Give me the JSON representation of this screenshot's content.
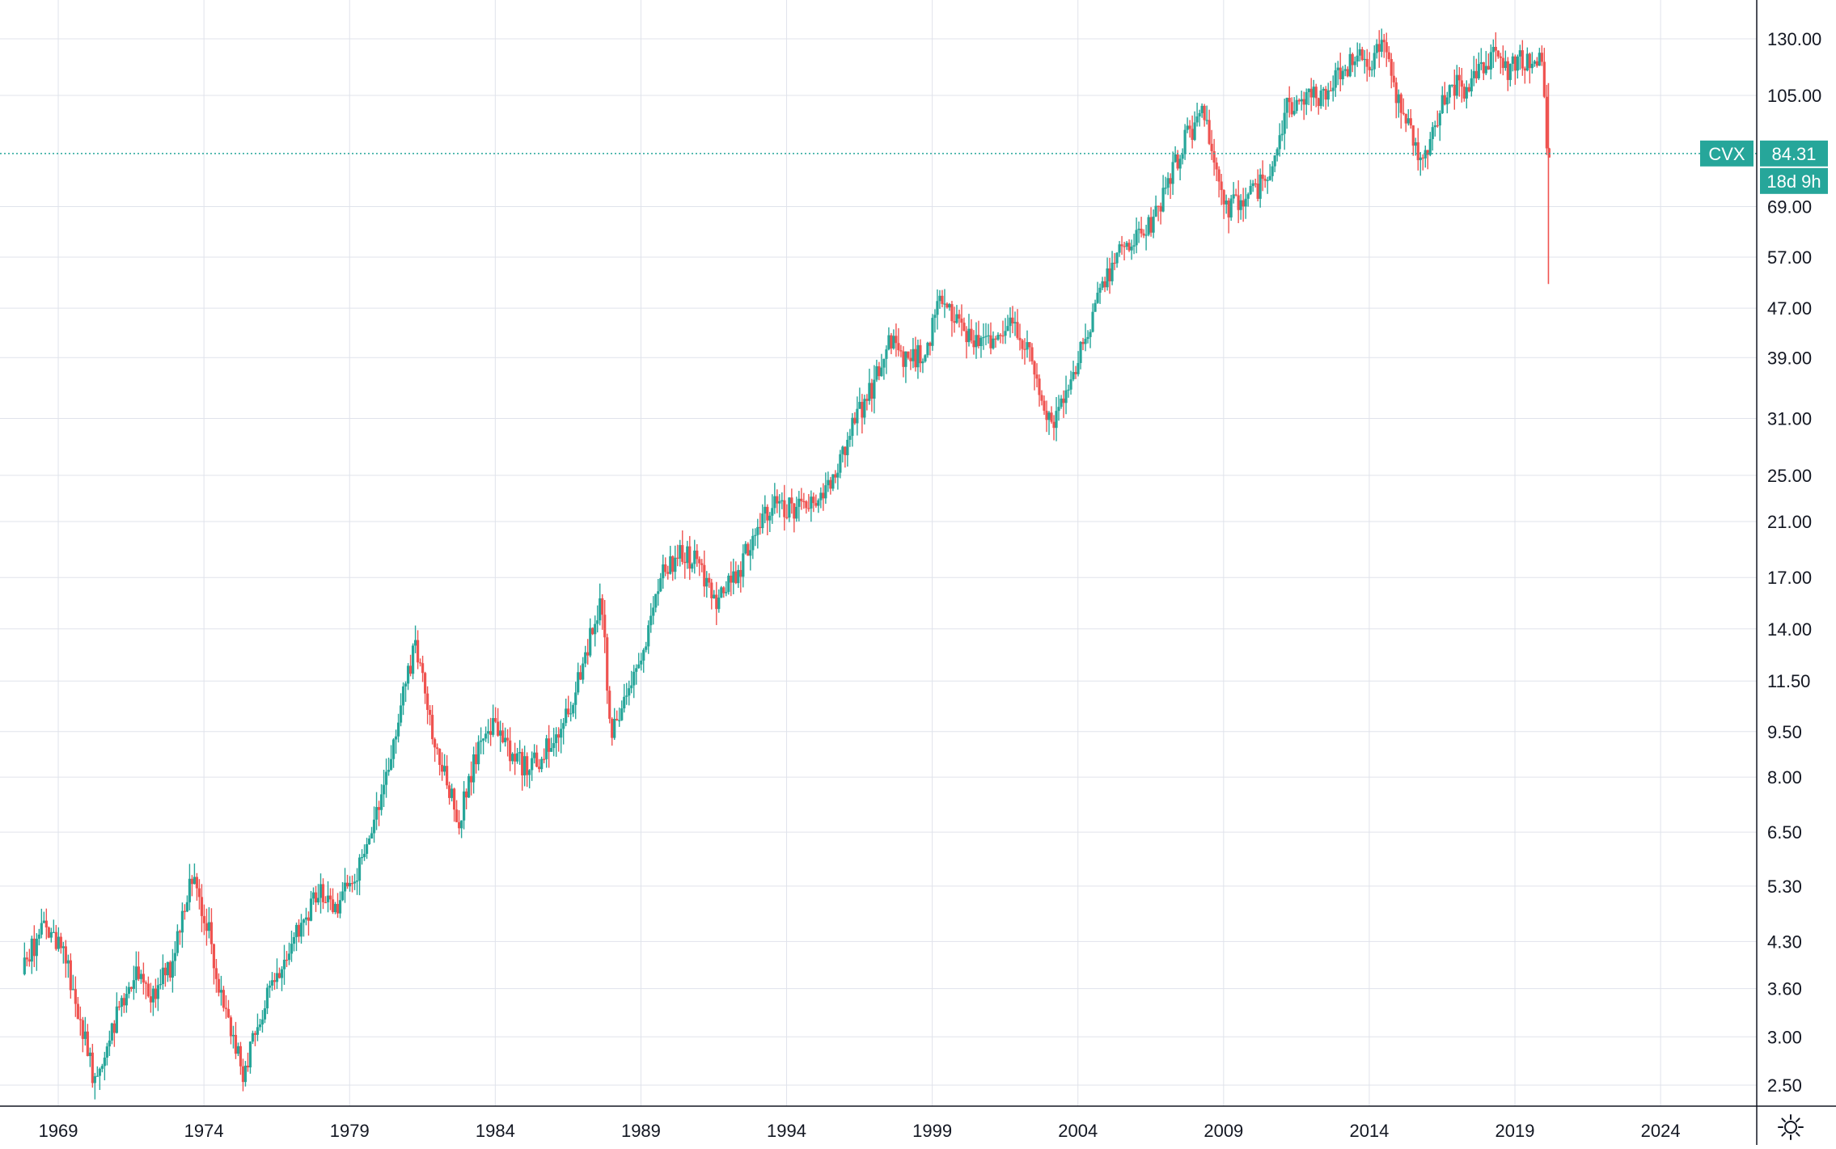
{
  "chart_data": {
    "type": "candlestick",
    "symbol": "CVX",
    "last_price_label": "84.31",
    "last_price": 84.31,
    "countdown_label": "18d 9h",
    "y_scale": "log",
    "y_ticks": [
      2.5,
      3.0,
      3.6,
      4.3,
      5.3,
      6.5,
      8.0,
      9.5,
      11.5,
      14.0,
      17.0,
      21.0,
      25.0,
      31.0,
      39.0,
      47.0,
      57.0,
      69.0,
      105.0,
      130.0
    ],
    "y_tick_labels": [
      "2.50",
      "3.00",
      "3.60",
      "4.30",
      "5.30",
      "6.50",
      "8.00",
      "9.50",
      "11.50",
      "14.00",
      "17.00",
      "21.00",
      "25.00",
      "31.00",
      "39.00",
      "47.00",
      "57.00",
      "69.00",
      "105.00",
      "130.00"
    ],
    "x_ticks": [
      1969,
      1974,
      1979,
      1984,
      1989,
      1994,
      1999,
      2004,
      2009,
      2014,
      2019,
      2024
    ],
    "x_tick_labels": [
      "1969",
      "1974",
      "1979",
      "1984",
      "1989",
      "1994",
      "1999",
      "2004",
      "2009",
      "2014",
      "2019",
      "2024"
    ],
    "x_range": [
      1967.0,
      2027.3
    ],
    "grid": true,
    "up_color": "#26a69a",
    "down_color": "#ef5350",
    "price_line_color": "#26a69a",
    "trend_keypoints": [
      [
        1967.8,
        3.8
      ],
      [
        1968.5,
        4.6
      ],
      [
        1969.2,
        4.2
      ],
      [
        1969.8,
        3.2
      ],
      [
        1970.3,
        2.5
      ],
      [
        1970.9,
        3.1
      ],
      [
        1971.6,
        3.8
      ],
      [
        1972.3,
        3.5
      ],
      [
        1973.0,
        4.0
      ],
      [
        1973.6,
        5.6
      ],
      [
        1974.2,
        4.5
      ],
      [
        1974.6,
        3.6
      ],
      [
        1975.0,
        3.0
      ],
      [
        1975.4,
        2.6
      ],
      [
        1975.9,
        3.2
      ],
      [
        1976.6,
        3.8
      ],
      [
        1977.2,
        4.5
      ],
      [
        1978.0,
        5.2
      ],
      [
        1978.6,
        4.9
      ],
      [
        1979.3,
        5.6
      ],
      [
        1980.2,
        7.5
      ],
      [
        1980.8,
        10.5
      ],
      [
        1981.3,
        13.2
      ],
      [
        1981.8,
        9.8
      ],
      [
        1982.3,
        8.2
      ],
      [
        1982.8,
        6.8
      ],
      [
        1983.3,
        8.5
      ],
      [
        1983.9,
        9.8
      ],
      [
        1984.6,
        8.8
      ],
      [
        1985.2,
        8.2
      ],
      [
        1986.0,
        9.2
      ],
      [
        1986.7,
        10.8
      ],
      [
        1987.3,
        13.5
      ],
      [
        1987.7,
        15.5
      ],
      [
        1988.0,
        9.5
      ],
      [
        1988.6,
        11.0
      ],
      [
        1989.2,
        13.0
      ],
      [
        1989.7,
        17.0
      ],
      [
        1990.4,
        18.5
      ],
      [
        1991.0,
        18.0
      ],
      [
        1991.6,
        15.5
      ],
      [
        1992.3,
        17.0
      ],
      [
        1993.0,
        20.5
      ],
      [
        1993.6,
        22.5
      ],
      [
        1994.3,
        22.0
      ],
      [
        1994.9,
        22.5
      ],
      [
        1995.6,
        25.0
      ],
      [
        1996.3,
        30.0
      ],
      [
        1997.1,
        36.0
      ],
      [
        1997.6,
        42.0
      ],
      [
        1998.2,
        38.0
      ],
      [
        1998.8,
        40.0
      ],
      [
        1999.3,
        48.0
      ],
      [
        1999.9,
        44.0
      ],
      [
        2000.5,
        41.0
      ],
      [
        2001.2,
        42.0
      ],
      [
        2001.8,
        45.0
      ],
      [
        2002.4,
        40.0
      ],
      [
        2002.9,
        32.0
      ],
      [
        2003.3,
        31.0
      ],
      [
        2003.8,
        36.0
      ],
      [
        2004.4,
        44.0
      ],
      [
        2005.0,
        53.0
      ],
      [
        2005.6,
        60.0
      ],
      [
        2006.2,
        62.0
      ],
      [
        2006.8,
        68.0
      ],
      [
        2007.4,
        82.0
      ],
      [
        2007.9,
        92.0
      ],
      [
        2008.4,
        98.0
      ],
      [
        2008.8,
        76.0
      ],
      [
        2009.2,
        69.0
      ],
      [
        2009.7,
        72.0
      ],
      [
        2010.2,
        74.0
      ],
      [
        2010.7,
        80.0
      ],
      [
        2011.2,
        100.0
      ],
      [
        2011.8,
        103.0
      ],
      [
        2012.4,
        106.0
      ],
      [
        2013.0,
        112.0
      ],
      [
        2013.6,
        122.0
      ],
      [
        2014.1,
        120.0
      ],
      [
        2014.6,
        126.0
      ],
      [
        2015.0,
        104.0
      ],
      [
        2015.5,
        90.0
      ],
      [
        2015.9,
        80.0
      ],
      [
        2016.4,
        98.0
      ],
      [
        2016.9,
        110.0
      ],
      [
        2017.4,
        107.0
      ],
      [
        2017.9,
        115.0
      ],
      [
        2018.3,
        124.0
      ],
      [
        2018.8,
        116.0
      ],
      [
        2019.3,
        120.0
      ],
      [
        2019.9,
        118.0
      ],
      [
        2020.0,
        115.0
      ],
      [
        2020.1,
        95.0
      ],
      [
        2020.15,
        84.31
      ]
    ]
  }
}
